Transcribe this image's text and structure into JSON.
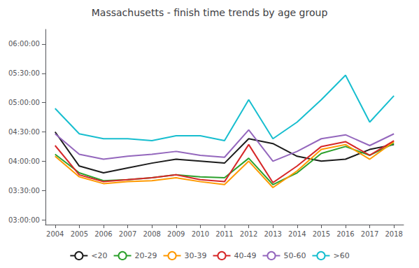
{
  "chart_data": {
    "type": "line",
    "title": "Massachusetts - finish time trends by age group",
    "x": [
      2004,
      2005,
      2006,
      2007,
      2008,
      2009,
      2010,
      2011,
      2012,
      2013,
      2014,
      2015,
      2016,
      2017,
      2018
    ],
    "series": [
      {
        "name": "<20",
        "color": "#1c1c1c",
        "values": [
          270,
          235,
          228,
          233,
          238,
          242,
          240,
          238,
          263,
          258,
          245,
          240,
          242,
          252,
          257
        ]
      },
      {
        "name": "20-29",
        "color": "#2ca02c",
        "values": [
          247,
          228,
          220,
          221,
          223,
          226,
          224,
          223,
          243,
          216,
          228,
          248,
          255,
          246,
          258
        ]
      },
      {
        "name": "30-39",
        "color": "#ff9900",
        "values": [
          245,
          224,
          217,
          219,
          220,
          223,
          219,
          216,
          240,
          213,
          230,
          252,
          257,
          242,
          260
        ]
      },
      {
        "name": "40-49",
        "color": "#d62728",
        "values": [
          256,
          226,
          219,
          221,
          223,
          226,
          221,
          219,
          257,
          218,
          235,
          255,
          260,
          246,
          261
        ]
      },
      {
        "name": "50-60",
        "color": "#9467bd",
        "values": [
          268,
          247,
          242,
          245,
          247,
          250,
          246,
          244,
          272,
          240,
          250,
          263,
          267,
          256,
          268
        ]
      },
      {
        "name": ">60",
        "color": "#17becf",
        "values": [
          294,
          268,
          263,
          263,
          261,
          266,
          266,
          261,
          303,
          263,
          280,
          303,
          328,
          280,
          307
        ]
      }
    ],
    "xlim": [
      2003.6,
      2018.4
    ],
    "xticks": [
      2004,
      2005,
      2006,
      2007,
      2008,
      2009,
      2010,
      2011,
      2012,
      2013,
      2014,
      2015,
      2016,
      2017,
      2018
    ],
    "ylim": [
      175,
      375
    ],
    "yticks": [
      {
        "value": 180,
        "label": "03:00:00"
      },
      {
        "value": 210,
        "label": "03:30:00"
      },
      {
        "value": 240,
        "label": "04:00:00"
      },
      {
        "value": 270,
        "label": "04:30:00"
      },
      {
        "value": 300,
        "label": "05:00:00"
      },
      {
        "value": 330,
        "label": "05:30:00"
      },
      {
        "value": 360,
        "label": "06:00:00"
      }
    ],
    "grid": false,
    "legend": "bottom"
  }
}
